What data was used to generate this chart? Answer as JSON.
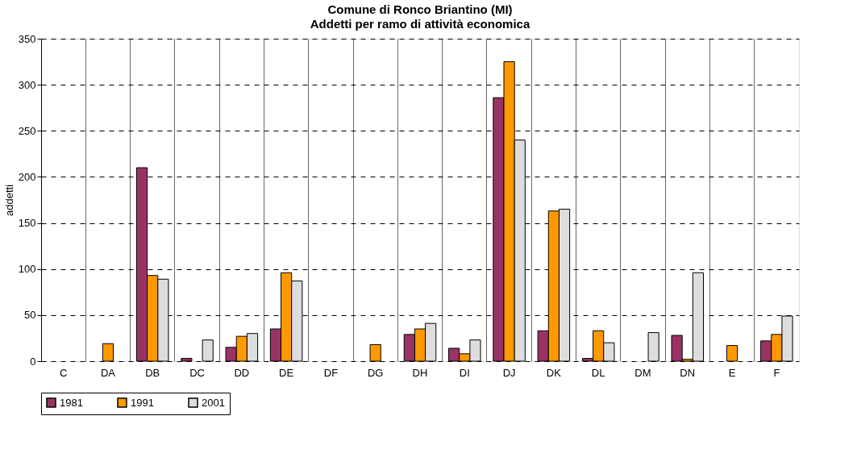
{
  "chart_data": {
    "type": "bar",
    "title": "Comune di Ronco Briantino (MI)",
    "subtitle": "Addetti per ramo di attività economica",
    "ylabel": "addetti",
    "categories": [
      "C",
      "DA",
      "DB",
      "DC",
      "DD",
      "DE",
      "DF",
      "DG",
      "DH",
      "DI",
      "DJ",
      "DK",
      "DL",
      "DM",
      "DN",
      "E",
      "F"
    ],
    "series": [
      {
        "name": "1981",
        "color": "#993366",
        "values": [
          null,
          null,
          210,
          3,
          15,
          35,
          null,
          null,
          29,
          14,
          286,
          33,
          3,
          null,
          28,
          null,
          22
        ]
      },
      {
        "name": "1991",
        "color": "#ff9900",
        "values": [
          null,
          19,
          93,
          null,
          27,
          96,
          null,
          18,
          35,
          8,
          325,
          163,
          33,
          null,
          2,
          17,
          29
        ]
      },
      {
        "name": "2001",
        "color": "#dddddd",
        "values": [
          null,
          null,
          89,
          23,
          30,
          87,
          null,
          null,
          41,
          23,
          240,
          165,
          20,
          31,
          96,
          null,
          49
        ]
      }
    ],
    "ylim": [
      0,
      350
    ],
    "yticks": [
      0,
      50,
      100,
      150,
      200,
      250,
      300,
      350
    ],
    "grid": true,
    "legend": "bottom"
  }
}
